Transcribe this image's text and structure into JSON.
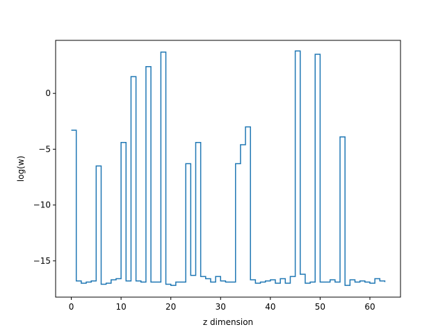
{
  "chart_data": {
    "type": "line",
    "drawstyle": "steps-post",
    "title": "",
    "xlabel": "z dimension",
    "ylabel": "log(w)",
    "xlim": [
      -3.15,
      66.15
    ],
    "ylim": [
      -18.25,
      4.75
    ],
    "xticks": [
      0,
      10,
      20,
      30,
      40,
      50,
      60
    ],
    "yticks": [
      -15,
      -10,
      -5,
      0
    ],
    "grid": false,
    "legend": "none",
    "series": [
      {
        "color": "#1f77b4",
        "x": [
          0,
          1,
          2,
          3,
          4,
          5,
          6,
          7,
          8,
          9,
          10,
          11,
          12,
          13,
          14,
          15,
          16,
          17,
          18,
          19,
          20,
          21,
          22,
          23,
          24,
          25,
          26,
          27,
          28,
          29,
          30,
          31,
          32,
          33,
          34,
          35,
          36,
          37,
          38,
          39,
          40,
          41,
          42,
          43,
          44,
          45,
          46,
          47,
          48,
          49,
          50,
          51,
          52,
          53,
          54,
          55,
          56,
          57,
          58,
          59,
          60,
          61,
          62,
          63
        ],
        "values": [
          -3.3,
          -16.8,
          -17.0,
          -16.9,
          -16.8,
          -6.5,
          -17.1,
          -17.0,
          -16.7,
          -16.6,
          -4.4,
          -16.8,
          1.5,
          -16.8,
          -16.9,
          2.4,
          -16.9,
          -16.9,
          3.7,
          -17.1,
          -17.2,
          -16.9,
          -16.9,
          -6.3,
          -16.3,
          -4.4,
          -16.4,
          -16.6,
          -16.9,
          -16.4,
          -16.8,
          -16.9,
          -16.9,
          -6.3,
          -4.6,
          -3.0,
          -16.7,
          -17.0,
          -16.9,
          -16.8,
          -16.7,
          -17.0,
          -16.6,
          -17.0,
          -16.4,
          3.8,
          -16.2,
          -17.0,
          -16.9,
          3.5,
          -16.9,
          -16.9,
          -16.7,
          -16.9,
          -3.9,
          -17.2,
          -16.7,
          -16.9,
          -16.8,
          -16.9,
          -17.0,
          -16.6,
          -16.8,
          -16.9
        ]
      }
    ]
  }
}
